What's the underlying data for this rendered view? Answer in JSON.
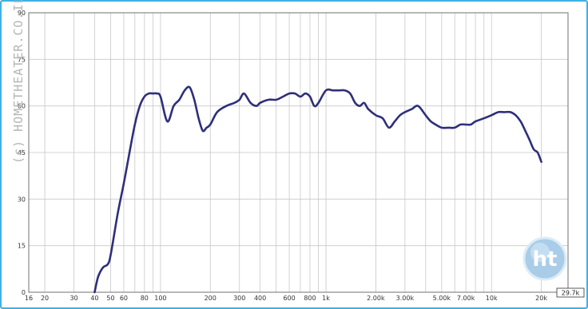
{
  "chart_data": {
    "type": "line",
    "title": "",
    "xlabel": "",
    "ylabel": "",
    "x_scale": "log",
    "xlim": [
      16,
      29000
    ],
    "ylim": [
      0,
      90
    ],
    "grid": true,
    "x_ticks": [
      "16",
      "20",
      "30",
      "40",
      "50",
      "60",
      "80",
      "100",
      "200",
      "300",
      "400",
      "600",
      "800",
      "1k",
      "2.00k",
      "3.00k",
      "5.00k",
      "7.00k",
      "10k",
      "20k"
    ],
    "x_tick_values": [
      16,
      20,
      30,
      40,
      50,
      60,
      80,
      100,
      200,
      300,
      400,
      600,
      800,
      1000,
      2000,
      3000,
      5000,
      7000,
      10000,
      20000
    ],
    "y_ticks": [
      "0",
      "15",
      "30",
      "45",
      "60",
      "75",
      "90"
    ],
    "y_tick_values": [
      0,
      15,
      30,
      45,
      60,
      75,
      90
    ],
    "series_color": "#2e2f7a",
    "series": [
      {
        "x": [
          40,
          42,
          45,
          48,
          50,
          55,
          60,
          65,
          70,
          75,
          80,
          85,
          90,
          95,
          100,
          110,
          120,
          130,
          140,
          150,
          160,
          170,
          180,
          190,
          200,
          220,
          250,
          280,
          300,
          320,
          350,
          380,
          400,
          450,
          500,
          550,
          600,
          650,
          700,
          750,
          800,
          850,
          900,
          1000,
          1100,
          1200,
          1300,
          1400,
          1500,
          1600,
          1700,
          1800,
          2000,
          2200,
          2400,
          2600,
          2800,
          3000,
          3300,
          3600,
          4000,
          4300,
          4600,
          5000,
          5500,
          6000,
          6500,
          7000,
          7500,
          8000,
          9000,
          10000,
          11000,
          12000,
          13000,
          14000,
          15000,
          16000,
          17000,
          18000,
          19000,
          20000
        ],
        "y": [
          0,
          5,
          8,
          9,
          12,
          25,
          35,
          45,
          54,
          60,
          63,
          64,
          64,
          64,
          63,
          55,
          60,
          62,
          65,
          66,
          62,
          56,
          52,
          53,
          54,
          58,
          60,
          61,
          62,
          64,
          61,
          60,
          61,
          62,
          62,
          63,
          64,
          64,
          63,
          64,
          63,
          60,
          61,
          65,
          65,
          65,
          65,
          64,
          61,
          60,
          61,
          59,
          57,
          56,
          53,
          55,
          57,
          58,
          59,
          60,
          57,
          55,
          54,
          53,
          53,
          53,
          54,
          54,
          54,
          55,
          56,
          57,
          58,
          58,
          58,
          57,
          55,
          52,
          49,
          46,
          45,
          42
        ]
      }
    ],
    "watermark": "(c) HOMETHEATER.CO.IL",
    "logo_text": "ht",
    "x_end_readout": "29.7k"
  }
}
